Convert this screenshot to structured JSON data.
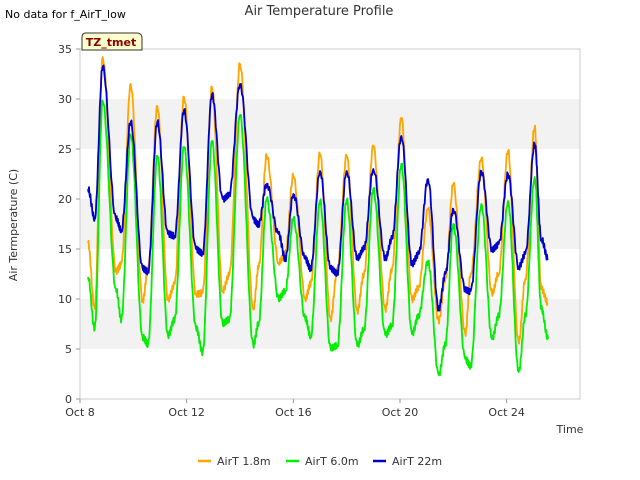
{
  "chart_data": {
    "type": "line",
    "title": "Air Temperature Profile",
    "note": "No data for f_AirT_low",
    "badge": "TZ_tmet",
    "xlabel": "Time",
    "ylabel": "Air Termperature (C)",
    "xlim": [
      0,
      18.75
    ],
    "ylim": [
      0,
      35
    ],
    "yticks": [
      0,
      5,
      10,
      15,
      20,
      25,
      30,
      35
    ],
    "xticks": [
      {
        "label": "Oct 8",
        "value": 0
      },
      {
        "label": "Oct 12",
        "value": 4
      },
      {
        "label": "Oct 16",
        "value": 8
      },
      {
        "label": "Oct 20",
        "value": 12
      },
      {
        "label": "Oct 24",
        "value": 16
      }
    ],
    "grid": "horizontal bands",
    "legend_position": "bottom",
    "series": [
      {
        "name": "AirT 1.8m",
        "color": "#ffa500",
        "points": [
          [
            0.3,
            15.6
          ],
          [
            0.55,
            9.0
          ],
          [
            0.85,
            34.2
          ],
          [
            1.35,
            12.8
          ],
          [
            1.55,
            13.5
          ],
          [
            1.9,
            31.5
          ],
          [
            2.35,
            9.8
          ],
          [
            2.55,
            13.0
          ],
          [
            2.9,
            29.3
          ],
          [
            3.3,
            10.0
          ],
          [
            3.55,
            11.5
          ],
          [
            3.9,
            30.2
          ],
          [
            4.35,
            10.5
          ],
          [
            4.6,
            10.6
          ],
          [
            4.95,
            31.2
          ],
          [
            5.35,
            10.8
          ],
          [
            5.6,
            12.4
          ],
          [
            6.0,
            33.5
          ],
          [
            6.5,
            9.0
          ],
          [
            6.7,
            13.2
          ],
          [
            7.0,
            24.3
          ],
          [
            7.45,
            13.6
          ],
          [
            7.7,
            14.5
          ],
          [
            8.0,
            22.3
          ],
          [
            8.45,
            10.0
          ],
          [
            8.65,
            11.5
          ],
          [
            9.0,
            24.5
          ],
          [
            9.4,
            8.0
          ],
          [
            9.65,
            13.0
          ],
          [
            10.0,
            24.3
          ],
          [
            10.4,
            8.8
          ],
          [
            10.65,
            12.5
          ],
          [
            11.0,
            25.3
          ],
          [
            11.45,
            9.0
          ],
          [
            11.7,
            13.0
          ],
          [
            12.05,
            28.1
          ],
          [
            12.45,
            10.0
          ],
          [
            12.7,
            11.2
          ],
          [
            13.05,
            19.0
          ],
          [
            13.45,
            7.8
          ],
          [
            13.7,
            12.0
          ],
          [
            14.0,
            21.5
          ],
          [
            14.45,
            6.5
          ],
          [
            14.65,
            12.5
          ],
          [
            15.05,
            24.0
          ],
          [
            15.45,
            10.5
          ],
          [
            15.7,
            12.5
          ],
          [
            16.05,
            24.8
          ],
          [
            16.45,
            5.6
          ],
          [
            16.7,
            12.0
          ],
          [
            17.05,
            27.2
          ],
          [
            17.3,
            11.0
          ],
          [
            17.55,
            9.6
          ]
        ]
      },
      {
        "name": "AirT 6.0m",
        "color": "#00ee00",
        "points": [
          [
            0.3,
            12.2
          ],
          [
            0.55,
            7.0
          ],
          [
            0.85,
            29.8
          ],
          [
            1.35,
            11.0
          ],
          [
            1.55,
            7.9
          ],
          [
            1.9,
            26.4
          ],
          [
            2.35,
            6.2
          ],
          [
            2.55,
            5.5
          ],
          [
            2.9,
            24.3
          ],
          [
            3.3,
            6.4
          ],
          [
            3.55,
            8.0
          ],
          [
            3.9,
            25.2
          ],
          [
            4.35,
            7.2
          ],
          [
            4.6,
            4.7
          ],
          [
            4.95,
            25.8
          ],
          [
            5.35,
            7.6
          ],
          [
            5.6,
            8.0
          ],
          [
            6.0,
            28.4
          ],
          [
            6.5,
            5.4
          ],
          [
            6.7,
            7.6
          ],
          [
            7.0,
            20.0
          ],
          [
            7.45,
            10.0
          ],
          [
            7.7,
            10.8
          ],
          [
            8.0,
            18.0
          ],
          [
            8.45,
            8.0
          ],
          [
            8.65,
            6.2
          ],
          [
            9.0,
            19.8
          ],
          [
            9.4,
            5.0
          ],
          [
            9.65,
            5.3
          ],
          [
            10.0,
            19.9
          ],
          [
            10.4,
            5.3
          ],
          [
            10.65,
            7.0
          ],
          [
            11.0,
            21.0
          ],
          [
            11.45,
            6.4
          ],
          [
            11.7,
            7.4
          ],
          [
            12.05,
            23.5
          ],
          [
            12.45,
            6.5
          ],
          [
            12.7,
            8.4
          ],
          [
            13.05,
            13.8
          ],
          [
            13.45,
            2.4
          ],
          [
            13.7,
            5.5
          ],
          [
            14.0,
            17.5
          ],
          [
            14.45,
            4.0
          ],
          [
            14.65,
            3.3
          ],
          [
            15.05,
            19.5
          ],
          [
            15.45,
            6.0
          ],
          [
            15.7,
            8.3
          ],
          [
            16.05,
            19.8
          ],
          [
            16.45,
            2.7
          ],
          [
            16.7,
            8.3
          ],
          [
            17.05,
            22.2
          ],
          [
            17.3,
            9.0
          ],
          [
            17.55,
            6.0
          ]
        ]
      },
      {
        "name": "AirT 22m",
        "color": "#0000cd",
        "points": [
          [
            0.3,
            21.0
          ],
          [
            0.55,
            18.0
          ],
          [
            0.85,
            33.2
          ],
          [
            1.35,
            18.0
          ],
          [
            1.55,
            16.8
          ],
          [
            1.9,
            27.7
          ],
          [
            2.35,
            13.0
          ],
          [
            2.55,
            12.7
          ],
          [
            2.9,
            27.7
          ],
          [
            3.3,
            16.5
          ],
          [
            3.55,
            16.3
          ],
          [
            3.9,
            28.9
          ],
          [
            4.35,
            15.0
          ],
          [
            4.6,
            14.6
          ],
          [
            4.95,
            30.5
          ],
          [
            5.35,
            20.0
          ],
          [
            5.6,
            20.5
          ],
          [
            6.0,
            31.5
          ],
          [
            6.5,
            18.0
          ],
          [
            6.7,
            17.5
          ],
          [
            7.0,
            21.5
          ],
          [
            7.45,
            16.5
          ],
          [
            7.7,
            14.0
          ],
          [
            8.0,
            20.5
          ],
          [
            8.45,
            14.0
          ],
          [
            8.65,
            13.0
          ],
          [
            9.0,
            22.8
          ],
          [
            9.4,
            13.0
          ],
          [
            9.65,
            12.5
          ],
          [
            10.0,
            22.8
          ],
          [
            10.4,
            14.0
          ],
          [
            10.65,
            15.0
          ],
          [
            11.0,
            23.0
          ],
          [
            11.45,
            14.0
          ],
          [
            11.7,
            16.0
          ],
          [
            12.05,
            26.3
          ],
          [
            12.45,
            13.5
          ],
          [
            12.7,
            14.5
          ],
          [
            13.05,
            22.0
          ],
          [
            13.45,
            9.0
          ],
          [
            13.7,
            12.5
          ],
          [
            14.0,
            19.0
          ],
          [
            14.45,
            11.0
          ],
          [
            14.65,
            10.8
          ],
          [
            15.05,
            22.8
          ],
          [
            15.45,
            15.0
          ],
          [
            15.7,
            15.5
          ],
          [
            16.05,
            22.5
          ],
          [
            16.45,
            13.2
          ],
          [
            16.7,
            14.5
          ],
          [
            17.05,
            25.5
          ],
          [
            17.3,
            16.0
          ],
          [
            17.55,
            14.0
          ]
        ]
      }
    ]
  }
}
